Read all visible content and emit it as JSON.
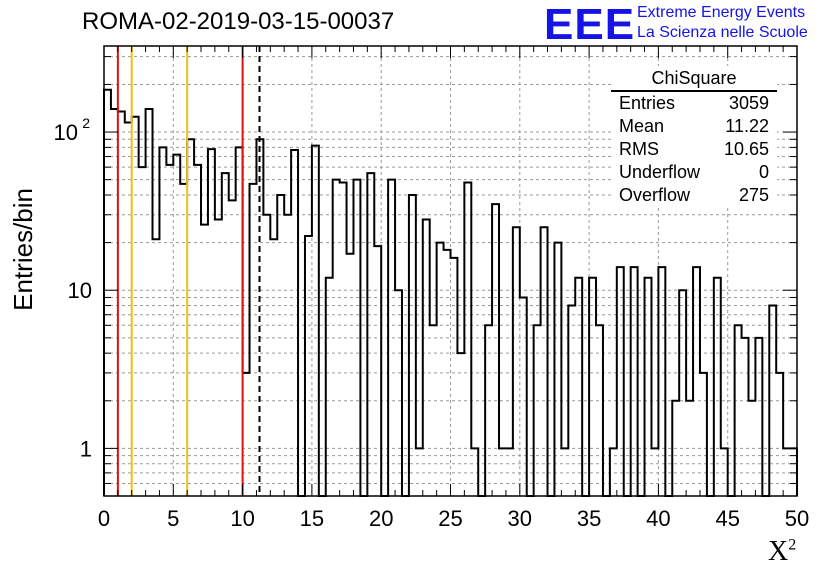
{
  "header": {
    "title": "ROMA-02-2019-03-15-00037",
    "logo_text": "EEE",
    "logo_line1": "Extreme Energy Events",
    "logo_line2": "La Scienza nelle Scuole"
  },
  "stats": {
    "title": "ChiSquare",
    "rows": [
      {
        "label": "Entries",
        "value": "3059"
      },
      {
        "label": "Mean",
        "value": "11.22"
      },
      {
        "label": "RMS",
        "value": "10.65"
      },
      {
        "label": "Underflow",
        "value": "0"
      },
      {
        "label": "Overflow",
        "value": "275"
      }
    ]
  },
  "colors": {
    "histogram": "#000000",
    "red_lines": "#dd1111",
    "yellow_lines": "#f0c010",
    "mean_line": "#000000",
    "grid": "#9a9a9a",
    "logo": "#1414e6"
  },
  "chart_data": {
    "type": "bar",
    "style": "step-histogram",
    "xlabel": "X",
    "xlabel_superscript": "2",
    "ylabel": "Entries/bin",
    "xlim": [
      0,
      50
    ],
    "ylim": [
      0.5,
      350
    ],
    "y_scale": "log",
    "grid": true,
    "bin_width": 0.5,
    "x_ticks": [
      0,
      5,
      10,
      15,
      20,
      25,
      30,
      35,
      40,
      45,
      50
    ],
    "x_tick_labels": [
      "0",
      "5",
      "10",
      "15",
      "20",
      "25",
      "30",
      "35",
      "40",
      "45",
      "50"
    ],
    "y_ticks": [
      1,
      10,
      100
    ],
    "y_tick_labels": [
      "1",
      "10",
      "10",
      "2"
    ],
    "bin_counts": [
      185,
      140,
      135,
      115,
      125,
      60,
      140,
      21,
      80,
      62,
      72,
      47,
      90,
      62,
      26,
      78,
      28,
      55,
      37,
      80,
      3,
      47,
      90,
      30,
      21,
      40,
      30,
      77,
      0,
      22,
      82,
      0,
      12,
      50,
      48,
      17,
      50,
      0,
      55,
      19,
      0,
      50,
      10,
      0,
      40,
      1,
      28,
      6,
      20,
      18,
      16,
      4,
      48,
      1,
      0,
      6,
      35,
      1,
      1,
      25,
      9,
      0,
      6,
      25,
      0,
      20,
      1,
      8,
      12,
      0,
      12,
      6,
      0,
      1,
      14,
      0,
      14,
      0,
      12,
      1,
      14,
      0,
      2,
      10,
      2,
      14,
      3,
      0,
      12,
      1,
      0,
      6,
      5,
      2,
      5,
      0,
      8,
      3,
      1,
      1
    ],
    "vertical_lines": [
      {
        "x": 1,
        "style": "red"
      },
      {
        "x": 2,
        "style": "yellow"
      },
      {
        "x": 6,
        "style": "yellow"
      },
      {
        "x": 10,
        "style": "red"
      },
      {
        "x": 11.22,
        "style": "dashed"
      }
    ]
  }
}
